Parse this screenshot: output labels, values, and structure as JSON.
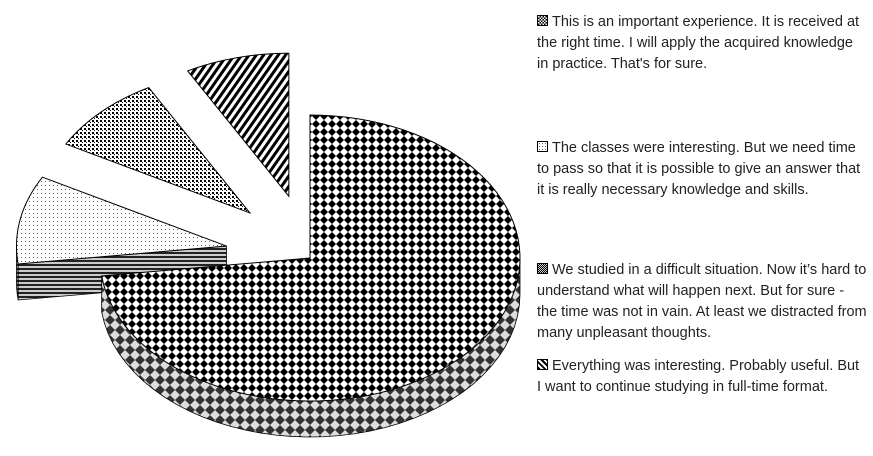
{
  "chart_data": {
    "type": "pie",
    "categories": [
      "This is an important experience. It is received at the right time. I will apply the acquired knowledge in practice. That's for sure.",
      "The classes were interesting. But we need time to pass so that it is possible to give an answer that it is really necessary knowledge and skills.",
      "We studied in a difficult situation. Now it’s hard to understand what will happen next. But for sure - the time was not in vain. At least we distracted from many unpleasant thoughts.",
      "Everything was interesting. Probably useful. But I want to continue studying in full-time format."
    ],
    "values": [
      73,
      10,
      9,
      8
    ]
  }
}
